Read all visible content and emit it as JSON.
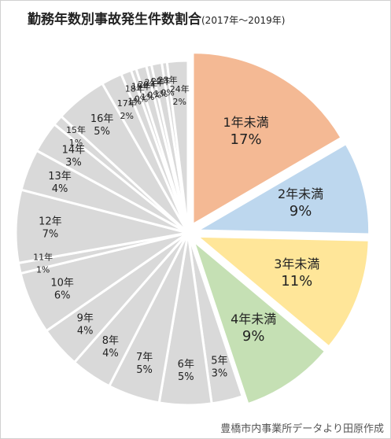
{
  "title": "勤務年数別事故発生件数割合",
  "subtitle": "(2017年～2019年)",
  "source": "豊橋市内事業所データより田原作成",
  "chart_data": {
    "type": "pie",
    "title": "勤務年数別事故発生件数割合",
    "subtitle": "(2017年～2019年)",
    "exploded": [
      "1年未満",
      "2年未満",
      "3年未満",
      "4年未満"
    ],
    "slices": [
      {
        "label": "1年未満",
        "value_label": "17%",
        "value": 17,
        "color": "#f4b994"
      },
      {
        "label": "2年未満",
        "value_label": "9%",
        "value": 9,
        "color": "#bdd7ee"
      },
      {
        "label": "3年未満",
        "value_label": "11%",
        "value": 11,
        "color": "#ffe699"
      },
      {
        "label": "4年未満",
        "value_label": "9%",
        "value": 9,
        "color": "#c5e0b4"
      },
      {
        "label": "5年",
        "value_label": "3%",
        "value": 3,
        "color": "#d9d9d9"
      },
      {
        "label": "6年",
        "value_label": "5%",
        "value": 5,
        "color": "#d9d9d9"
      },
      {
        "label": "7年",
        "value_label": "5%",
        "value": 5,
        "color": "#d9d9d9"
      },
      {
        "label": "8年",
        "value_label": "4%",
        "value": 4,
        "color": "#d9d9d9"
      },
      {
        "label": "9年",
        "value_label": "4%",
        "value": 4,
        "color": "#d9d9d9"
      },
      {
        "label": "10年",
        "value_label": "6%",
        "value": 6,
        "color": "#d9d9d9"
      },
      {
        "label": "11年",
        "value_label": "1%",
        "value": 1,
        "color": "#d9d9d9"
      },
      {
        "label": "12年",
        "value_label": "7%",
        "value": 7,
        "color": "#d9d9d9"
      },
      {
        "label": "13年",
        "value_label": "4%",
        "value": 4,
        "color": "#d9d9d9"
      },
      {
        "label": "14年",
        "value_label": "3%",
        "value": 3,
        "color": "#d9d9d9"
      },
      {
        "label": "15年",
        "value_label": "1%",
        "value": 1,
        "color": "#d9d9d9"
      },
      {
        "label": "16年",
        "value_label": "5%",
        "value": 5,
        "color": "#d9d9d9"
      },
      {
        "label": "17年",
        "value_label": "2%",
        "value": 2,
        "color": "#d9d9d9"
      },
      {
        "label": "18年",
        "value_label": "1%",
        "value": 1,
        "color": "#d9d9d9"
      },
      {
        "label": "19年",
        "value_label": "0%",
        "value": 0.5,
        "color": "#d9d9d9"
      },
      {
        "label": "20年",
        "value_label": "1%",
        "value": 1,
        "color": "#d9d9d9"
      },
      {
        "label": "21年",
        "value_label": "0%",
        "value": 0.5,
        "color": "#d9d9d9"
      },
      {
        "label": "22年",
        "value_label": "1%",
        "value": 1,
        "color": "#d9d9d9"
      },
      {
        "label": "23年",
        "value_label": "0%",
        "value": 0.5,
        "color": "#d9d9d9"
      },
      {
        "label": "24年",
        "value_label": "2%",
        "value": 2,
        "color": "#d9d9d9"
      }
    ]
  }
}
